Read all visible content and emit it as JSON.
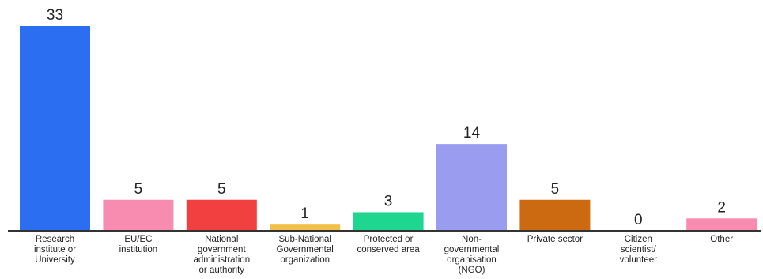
{
  "chart_data": {
    "type": "bar",
    "title": "",
    "xlabel": "",
    "ylabel": "",
    "ylim": [
      0,
      33
    ],
    "grid": false,
    "categories": [
      "Research institute or University",
      "EU/EC institution",
      "National government administration or authority",
      "Sub-National Governmental organization",
      "Protected or conserved area",
      "Non-governmental organisation (NGO)",
      "Private sector",
      "Citizen scientist/ volunteer",
      "Other"
    ],
    "category_label_lines": [
      [
        "Research",
        "institute or",
        "University"
      ],
      [
        "EU/EC",
        "institution"
      ],
      [
        "National",
        "government",
        "administration",
        "or authority"
      ],
      [
        "Sub-National",
        "Governmental",
        "organization"
      ],
      [
        "Protected or",
        "conserved area"
      ],
      [
        "Non-",
        "governmental",
        "organisation",
        "(NGO)"
      ],
      [
        "Private sector"
      ],
      [
        "Citizen",
        "scientist/",
        "volunteer"
      ],
      [
        "Other"
      ]
    ],
    "values": [
      33,
      5,
      5,
      1,
      3,
      14,
      5,
      0,
      2
    ],
    "colors": [
      "#2B6EF2",
      "#F78CB0",
      "#F24040",
      "#F2C04A",
      "#1FD690",
      "#9A9CF0",
      "#CC6A12",
      "#CCCCCC",
      "#F78CB0"
    ]
  }
}
